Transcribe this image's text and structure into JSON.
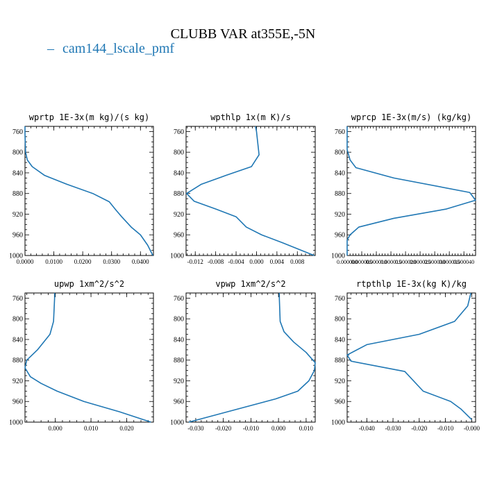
{
  "title": "CLUBB VAR at355E,-5N",
  "legend": {
    "label": "cam144_lscale_pmf",
    "color": "#1f77b4"
  },
  "chart_data": [
    {
      "type": "line",
      "title": "wprtp   1E-3x(m kg)/(s kg)",
      "xlim": [
        0,
        0.0445
      ],
      "ylim": [
        1000,
        750
      ],
      "xticks": [
        0,
        0.01,
        0.02,
        0.03,
        0.04
      ],
      "xtick_labels": [
        "0.0000",
        "0.0100",
        "0.0200",
        "0.0300",
        "0.0400"
      ],
      "yticks": [
        760,
        800,
        840,
        880,
        920,
        960,
        1000
      ],
      "series": [
        {
          "name": "cam144_lscale_pmf",
          "x": [
            0,
            0,
            0.0002,
            0.0008,
            0.0025,
            0.0068,
            0.0145,
            0.0235,
            0.0292,
            0.0315,
            0.0335,
            0.0368,
            0.04,
            0.0425,
            0.0443
          ],
          "y": [
            750,
            765,
            800,
            815,
            828,
            845,
            862,
            880,
            896,
            912,
            925,
            945,
            960,
            980,
            1000
          ]
        }
      ]
    },
    {
      "type": "line",
      "title": "wpthlp   1x(m K)/s",
      "xlim": [
        -0.0138,
        0.0115
      ],
      "ylim": [
        1000,
        750
      ],
      "xticks": [
        -0.012,
        -0.008,
        -0.004,
        0,
        0.004,
        0.008
      ],
      "xtick_labels": [
        "-0.012",
        "-0.008",
        "-0.004",
        "0.000",
        "0.004",
        "0.008"
      ],
      "yticks": [
        760,
        800,
        840,
        880,
        920,
        960,
        1000
      ],
      "series": [
        {
          "name": "cam144_lscale_pmf",
          "x": [
            -0.0002,
            0,
            0.0005,
            -0.001,
            -0.006,
            -0.0108,
            -0.0137,
            -0.0122,
            -0.008,
            -0.004,
            -0.002,
            0.001,
            0.005,
            0.0113
          ],
          "y": [
            750,
            760,
            805,
            828,
            845,
            862,
            880,
            895,
            910,
            925,
            945,
            960,
            975,
            1000
          ]
        }
      ]
    },
    {
      "type": "line",
      "title": "wprcp   1E-3x(m/s) (kg/kg)",
      "xlim": [
        0,
        4.4e-05
      ],
      "ylim": [
        1000,
        750
      ],
      "xticks": [
        0,
        5e-06,
        1e-05,
        1.5e-05,
        2e-05,
        2.5e-05,
        3e-05,
        3.5e-05,
        4e-05
      ],
      "xtick_labels": [
        "0.000000",
        "0.000005",
        "0.000010",
        "0.000015",
        "0.000020",
        "0.000025",
        "0.000030",
        "0.000035",
        "0.000040"
      ],
      "yticks": [
        760,
        800,
        840,
        880,
        920,
        960,
        1000
      ],
      "series": [
        {
          "name": "cam144_lscale_pmf",
          "x": [
            0,
            0,
            1e-06,
            3e-06,
            1.6e-05,
            4.2e-05,
            4.4e-05,
            3.4e-05,
            1.6e-05,
            4e-06,
            1e-06,
            0,
            0
          ],
          "y": [
            750,
            795,
            815,
            830,
            850,
            878,
            893,
            910,
            928,
            945,
            960,
            970,
            1000
          ]
        }
      ]
    },
    {
      "type": "line",
      "title": "upwp   1xm^2/s^2",
      "xlim": [
        -0.0085,
        0.0275
      ],
      "ylim": [
        1000,
        750
      ],
      "xticks": [
        0,
        0.01,
        0.02
      ],
      "xtick_labels": [
        "0.000",
        "0.010",
        "0.020"
      ],
      "yticks": [
        760,
        800,
        840,
        880,
        920,
        960,
        1000
      ],
      "series": [
        {
          "name": "cam144_lscale_pmf",
          "x": [
            -0.0002,
            -0.0002,
            -0.0005,
            -0.0015,
            -0.005,
            -0.008,
            -0.0085,
            -0.007,
            -0.004,
            0.0005,
            0.008,
            0.018,
            0.0268
          ],
          "y": [
            750,
            760,
            805,
            830,
            860,
            880,
            895,
            912,
            925,
            940,
            960,
            980,
            1000
          ]
        }
      ]
    },
    {
      "type": "line",
      "title": "vpwp   1xm^2/s^2",
      "xlim": [
        -0.0335,
        0.0133
      ],
      "ylim": [
        1000,
        750
      ],
      "xticks": [
        -0.03,
        -0.02,
        -0.01,
        0,
        0.01
      ],
      "xtick_labels": [
        "-0.030",
        "-0.020",
        "-0.010",
        "0.000",
        "0.010"
      ],
      "yticks": [
        760,
        800,
        840,
        880,
        920,
        960,
        1000
      ],
      "series": [
        {
          "name": "cam144_lscale_pmf",
          "x": [
            0.0003,
            0.0003,
            0.0006,
            0.002,
            0.0055,
            0.01,
            0.0133,
            0.013,
            0.011,
            0.007,
            -0.001,
            -0.015,
            -0.0325
          ],
          "y": [
            750,
            760,
            805,
            825,
            845,
            865,
            885,
            900,
            920,
            940,
            955,
            975,
            1000
          ]
        }
      ]
    },
    {
      "type": "line",
      "title": "rtpthlp   1E-3x(kg K)/kg",
      "xlim": [
        -0.0475,
        0.0015
      ],
      "ylim": [
        1000,
        750
      ],
      "xticks": [
        -0.04,
        -0.03,
        -0.02,
        -0.01,
        0
      ],
      "xtick_labels": [
        "-0.040",
        "-0.030",
        "-0.020",
        "-0.010",
        "-0.000"
      ],
      "yticks": [
        760,
        800,
        840,
        880,
        920,
        960,
        1000
      ],
      "series": [
        {
          "name": "cam144_lscale_pmf",
          "x": [
            -0.0003,
            -0.0015,
            -0.0065,
            -0.02,
            -0.04,
            -0.0475,
            -0.046,
            -0.0255,
            -0.0185,
            -0.008,
            -0.004,
            0
          ],
          "y": [
            750,
            775,
            805,
            830,
            850,
            870,
            882,
            902,
            940,
            960,
            975,
            995
          ]
        }
      ]
    }
  ]
}
